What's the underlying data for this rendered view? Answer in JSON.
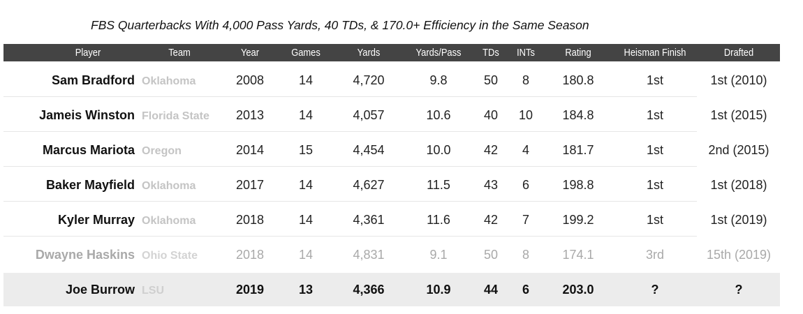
{
  "title": "FBS Quarterbacks With 4,000 Pass Yards, 40 TDs, & 170.0+ Efficiency in the Same Season",
  "columns": [
    "Player",
    "Team",
    "Year",
    "Games",
    "Yards",
    "Yards/Pass",
    "TDs",
    "INTs",
    "Rating",
    "Heisman Finish",
    "Drafted"
  ],
  "rows": [
    {
      "player": "Sam Bradford",
      "team": "Oklahoma",
      "year": "2008",
      "games": "14",
      "yards": "4,720",
      "ypp": "9.8",
      "tds": "50",
      "ints": "8",
      "rating": "180.8",
      "heisman": "1st",
      "drafted": "1st (2010)"
    },
    {
      "player": "Jameis Winston",
      "team": "Florida State",
      "year": "2013",
      "games": "14",
      "yards": "4,057",
      "ypp": "10.6",
      "tds": "40",
      "ints": "10",
      "rating": "184.8",
      "heisman": "1st",
      "drafted": "1st (2015)"
    },
    {
      "player": "Marcus Mariota",
      "team": "Oregon",
      "year": "2014",
      "games": "15",
      "yards": "4,454",
      "ypp": "10.0",
      "tds": "42",
      "ints": "4",
      "rating": "181.7",
      "heisman": "1st",
      "drafted": "2nd (2015)"
    },
    {
      "player": "Baker Mayfield",
      "team": "Oklahoma",
      "year": "2017",
      "games": "14",
      "yards": "4,627",
      "ypp": "11.5",
      "tds": "43",
      "ints": "6",
      "rating": "198.8",
      "heisman": "1st",
      "drafted": "1st (2018)"
    },
    {
      "player": "Kyler Murray",
      "team": "Oklahoma",
      "year": "2018",
      "games": "14",
      "yards": "4,361",
      "ypp": "11.6",
      "tds": "42",
      "ints": "7",
      "rating": "199.2",
      "heisman": "1st",
      "drafted": "1st (2019)"
    },
    {
      "player": "Dwayne Haskins",
      "team": "Ohio State",
      "year": "2018",
      "games": "14",
      "yards": "4,831",
      "ypp": "9.1",
      "tds": "50",
      "ints": "8",
      "rating": "174.1",
      "heisman": "3rd",
      "drafted": "15th (2019)"
    },
    {
      "player": "Joe Burrow",
      "team": "LSU",
      "year": "2019",
      "games": "13",
      "yards": "4,366",
      "ypp": "10.9",
      "tds": "44",
      "ints": "6",
      "rating": "203.0",
      "heisman": "?",
      "drafted": "?"
    }
  ],
  "colors": {
    "header_bg": "#444444",
    "header_text": "#ffffff",
    "team_text": "#c4c4c4",
    "faded_text": "#a9a9a9",
    "highlight_row_bg": "#ececec"
  }
}
